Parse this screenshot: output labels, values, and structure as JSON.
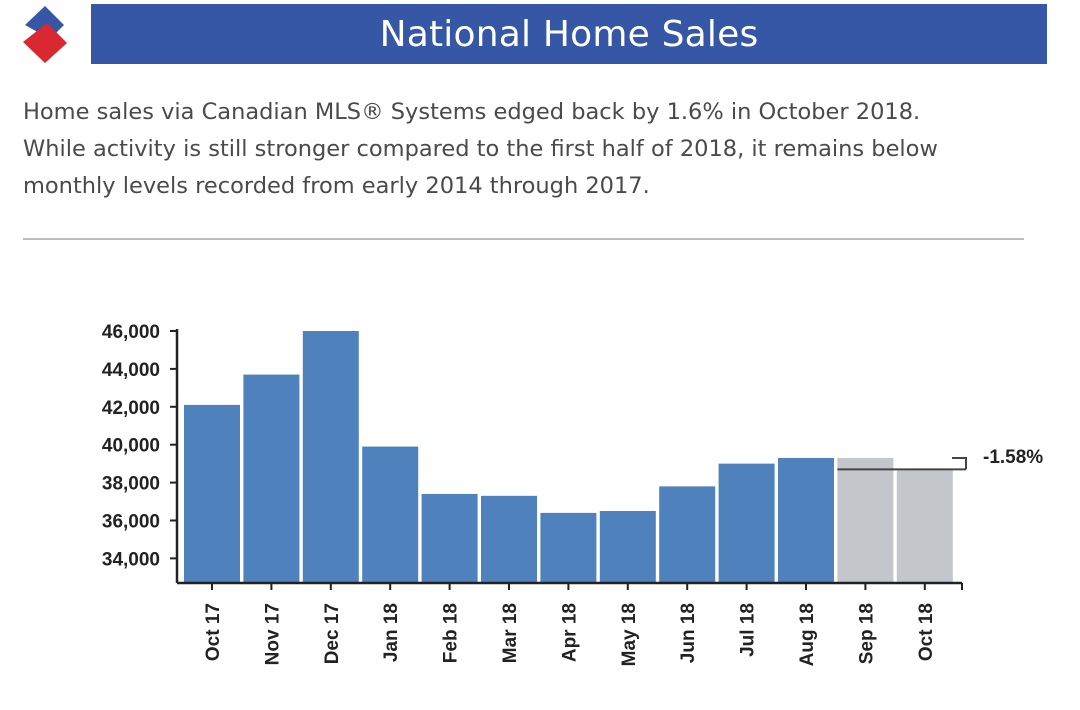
{
  "header": {
    "title": "National Home Sales"
  },
  "intro": {
    "lines": [
      "Home sales via Canadian MLS® Systems edged back by 1.6% in October 2018.",
      "While activity is still stronger compared to the first half of 2018, it remains below",
      "monthly levels recorded from early 2014 through 2017."
    ]
  },
  "colors": {
    "brand_blue": "#3557a6",
    "brand_red": "#d9282f",
    "bar_blue": "#4f81bd",
    "bar_grey": "#c3c7cb"
  },
  "chart_data": {
    "type": "bar",
    "title": "",
    "xlabel": "",
    "ylabel": "",
    "categories": [
      "Oct 17",
      "Nov 17",
      "Dec 17",
      "Jan 18",
      "Feb 18",
      "Mar 18",
      "Apr 18",
      "May 18",
      "Jun 18",
      "Jul 18",
      "Aug 18",
      "Sep 18",
      "Oct 18"
    ],
    "values": [
      42100,
      43700,
      46000,
      39900,
      37400,
      37300,
      36400,
      36500,
      37800,
      39000,
      39300,
      39300,
      38700
    ],
    "highlight": [
      false,
      false,
      false,
      false,
      false,
      false,
      false,
      false,
      false,
      false,
      false,
      true,
      true
    ],
    "ylim": [
      32700,
      46000
    ],
    "yticks": [
      34000,
      36000,
      38000,
      40000,
      42000,
      44000,
      46000
    ],
    "ytick_labels": [
      "34,000",
      "36,000",
      "38,000",
      "40,000",
      "42,000",
      "44,000",
      "46,000"
    ],
    "annotation": {
      "text": "-1.58%",
      "from_category": "Sep 18",
      "to_category": "Oct 18"
    }
  }
}
